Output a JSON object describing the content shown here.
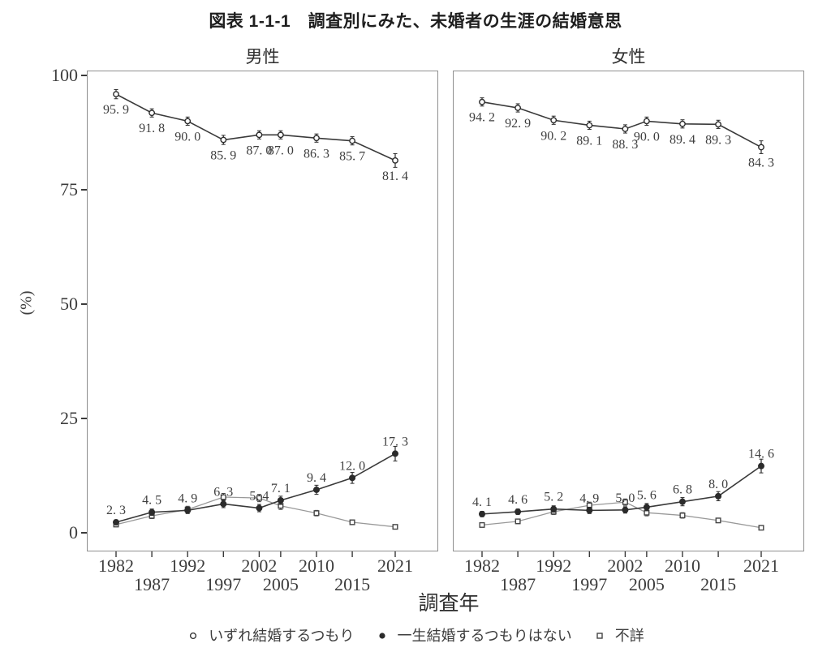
{
  "title": "図表 1-1-1　調査別にみた、未婚者の生涯の結婚意思",
  "y_axis": {
    "label": "(%)",
    "ticks": [
      100,
      75,
      50,
      25,
      0
    ],
    "range": [
      0,
      100
    ]
  },
  "x_axis": {
    "label": "調査年",
    "years": [
      1982,
      1987,
      1992,
      1997,
      2002,
      2005,
      2010,
      2015,
      2021
    ]
  },
  "legend": [
    {
      "marker": "open-circle",
      "label": "いずれ結婚するつもり"
    },
    {
      "marker": "filled-circle",
      "label": "一生結婚するつもりはない"
    },
    {
      "marker": "open-square",
      "label": "不詳"
    }
  ],
  "colors": {
    "dark_line": "#3a3a3a",
    "marker_dark": "#2b2b2b",
    "gray_line": "#999999",
    "square_marker": "#454545",
    "panel_border": "#8f8f8f",
    "label_text": "#3f3f3f"
  },
  "chart_data": {
    "type": "line",
    "x_years": [
      1982,
      1987,
      1992,
      1997,
      2002,
      2005,
      2010,
      2015,
      2021
    ],
    "ylim": [
      0,
      100
    ],
    "grid": false,
    "error_bars": true,
    "legend_position": "bottom",
    "panels": [
      {
        "key": "male",
        "title": "男性",
        "series": [
          {
            "key": "unknown",
            "name": "不詳",
            "marker": "open-square",
            "line_color": "#999999",
            "marker_color": "#454545",
            "values": [
              1.8,
              3.7,
              5.1,
              7.8,
              7.6,
              5.9,
              4.3,
              2.3,
              1.3
            ],
            "values_estimated": true,
            "show_labels": false,
            "errors": [
              0.5,
              0.6,
              0.7,
              0.8,
              0.8,
              0.8,
              0.6,
              0.5,
              0.4
            ]
          },
          {
            "key": "no-intention-to-ever-marry",
            "name": "一生結婚するつもりはない",
            "marker": "filled-circle",
            "line_color": "#3a3a3a",
            "marker_color": "#2b2b2b",
            "values": [
              2.3,
              4.5,
              4.9,
              6.3,
              5.4,
              7.1,
              9.4,
              12.0,
              17.3
            ],
            "show_labels": true,
            "label_side": "above",
            "errors": [
              0.5,
              0.7,
              0.7,
              0.8,
              0.8,
              0.9,
              1.0,
              1.2,
              1.6
            ]
          },
          {
            "key": "eventually-intend-to-marry",
            "name": "いずれ結婚するつもり",
            "marker": "open-circle",
            "line_color": "#3a3a3a",
            "marker_color": "#2b2b2b",
            "values": [
              95.9,
              91.8,
              90.0,
              85.9,
              87.0,
              87.0,
              86.3,
              85.7,
              81.4
            ],
            "show_labels": true,
            "label_side": "below",
            "errors": [
              1.0,
              0.9,
              0.9,
              1.0,
              0.9,
              0.9,
              0.9,
              0.9,
              1.5
            ]
          }
        ]
      },
      {
        "key": "female",
        "title": "女性",
        "series": [
          {
            "key": "unknown",
            "name": "不詳",
            "marker": "open-square",
            "line_color": "#999999",
            "marker_color": "#454545",
            "values": [
              1.7,
              2.5,
              4.6,
              6.0,
              6.7,
              4.4,
              3.8,
              2.7,
              1.1
            ],
            "values_estimated": true,
            "show_labels": false,
            "errors": [
              0.4,
              0.5,
              0.6,
              0.7,
              0.7,
              0.7,
              0.6,
              0.5,
              0.3
            ]
          },
          {
            "key": "no-intention-to-ever-marry",
            "name": "一生結婚するつもりはない",
            "marker": "filled-circle",
            "line_color": "#3a3a3a",
            "marker_color": "#2b2b2b",
            "values": [
              4.1,
              4.6,
              5.2,
              4.9,
              5.0,
              5.6,
              6.8,
              8.0,
              14.6
            ],
            "show_labels": true,
            "label_side": "above",
            "errors": [
              0.6,
              0.6,
              0.7,
              0.7,
              0.7,
              0.8,
              0.9,
              1.0,
              1.5
            ]
          },
          {
            "key": "eventually-intend-to-marry",
            "name": "いずれ結婚するつもり",
            "marker": "open-circle",
            "line_color": "#3a3a3a",
            "marker_color": "#2b2b2b",
            "values": [
              94.2,
              92.9,
              90.2,
              89.1,
              88.3,
              90.0,
              89.4,
              89.3,
              84.3
            ],
            "show_labels": true,
            "label_side": "below",
            "errors": [
              0.9,
              0.9,
              0.9,
              0.9,
              0.9,
              0.9,
              0.9,
              0.9,
              1.4
            ]
          }
        ]
      }
    ]
  }
}
